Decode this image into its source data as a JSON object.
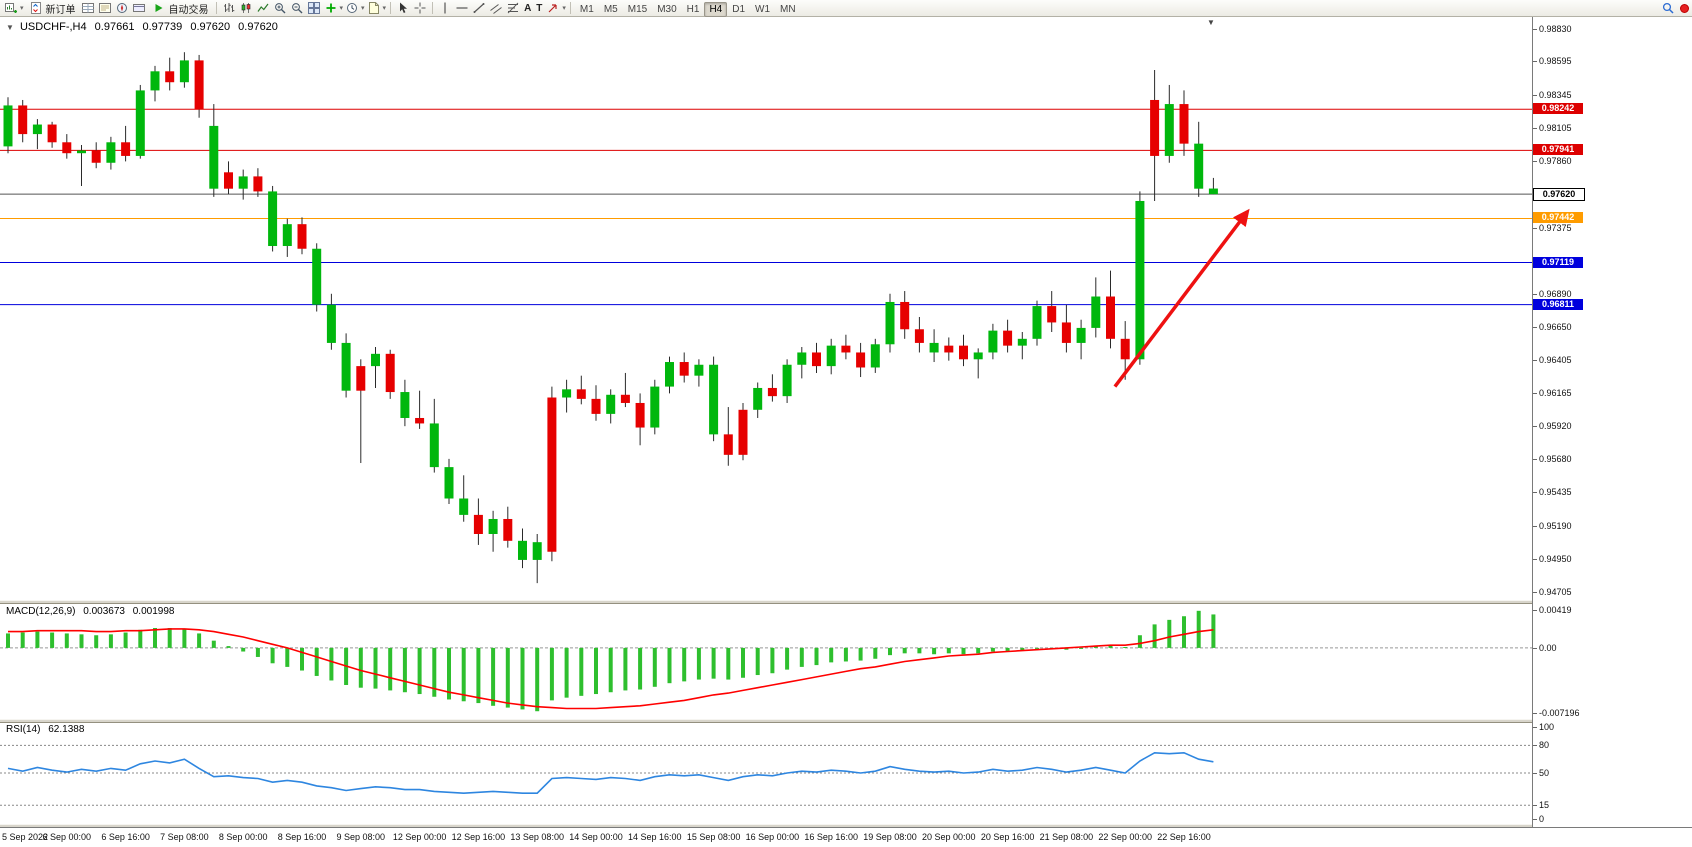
{
  "toolbar": {
    "new_order_label": "新订单",
    "autotrading_label": "自动交易",
    "text_tool_label": "A",
    "label_tool_label": "T",
    "timeframes": [
      "M1",
      "M5",
      "M15",
      "M30",
      "H1",
      "H4",
      "D1",
      "W1",
      "MN"
    ],
    "active_timeframe": "H4"
  },
  "colors": {
    "up": "#00b70d",
    "down": "#e60000",
    "wick": "#2a2a2a",
    "macd_hist": "#2ebf2e",
    "macd_signal": "#ff0000",
    "rsi_line": "#2e86e0",
    "arrow": "#ee1111"
  },
  "chart": {
    "title": "USDCHF-,H4",
    "ohlc": {
      "open": "0.97661",
      "high": "0.97739",
      "low": "0.97620",
      "close": "0.97620"
    },
    "price_axis": {
      "max": 0.9883,
      "min": 0.94705,
      "scale_labels": [
        "0.98830",
        "0.98595",
        "0.98345",
        "0.98105",
        "0.97860",
        "0.97375",
        "0.96890",
        "0.96650",
        "0.96405",
        "0.96165",
        "0.95920",
        "0.95680",
        "0.95435",
        "0.95190",
        "0.94950",
        "0.94705"
      ]
    },
    "levels": [
      {
        "price": 0.98242,
        "label": "0.98242",
        "line_color": "#dd0000",
        "badge_bg": "#dd0000",
        "badge_fg": "#ffffff"
      },
      {
        "price": 0.97941,
        "label": "0.97941",
        "line_color": "#dd0000",
        "badge_bg": "#dd0000",
        "badge_fg": "#ffffff"
      },
      {
        "price": 0.9762,
        "label": "0.97620",
        "line_color": "#555555",
        "badge_bg": "#ffffff",
        "badge_fg": "#000000",
        "badge_border": "#000000"
      },
      {
        "price": 0.97442,
        "label": "0.97442",
        "line_color": "#ff9c00",
        "badge_bg": "#ff9c00",
        "badge_fg": "#ffffff"
      },
      {
        "price": 0.97119,
        "label": "0.97119",
        "line_color": "#0000dd",
        "badge_bg": "#0000dd",
        "badge_fg": "#ffffff"
      },
      {
        "price": 0.96811,
        "label": "0.96811",
        "line_color": "#0000dd",
        "badge_bg": "#0000dd",
        "badge_fg": "#ffffff"
      }
    ],
    "time_labels": [
      "5 Sep 2022",
      "6 Sep 00:00",
      "6 Sep 16:00",
      "7 Sep 08:00",
      "8 Sep 00:00",
      "8 Sep 16:00",
      "9 Sep 08:00",
      "12 Sep 00:00",
      "12 Sep 16:00",
      "13 Sep 08:00",
      "14 Sep 00:00",
      "14 Sep 16:00",
      "15 Sep 08:00",
      "16 Sep 00:00",
      "16 Sep 16:00",
      "19 Sep 08:00",
      "20 Sep 00:00",
      "20 Sep 16:00",
      "21 Sep 08:00",
      "22 Sep 00:00",
      "22 Sep 16:00"
    ],
    "label_every_n_candles": 4,
    "candles": [
      [
        0.9797,
        0.9833,
        0.9792,
        0.9827,
        "g"
      ],
      [
        0.9827,
        0.9831,
        0.98,
        0.9806,
        "r"
      ],
      [
        0.9806,
        0.9817,
        0.9795,
        0.9813,
        "g"
      ],
      [
        0.9813,
        0.9815,
        0.9796,
        0.98,
        "r"
      ],
      [
        0.98,
        0.9806,
        0.9788,
        0.9792,
        "r"
      ],
      [
        0.9792,
        0.9798,
        0.9768,
        0.9794,
        "g"
      ],
      [
        0.9794,
        0.98,
        0.9781,
        0.9785,
        "r"
      ],
      [
        0.9785,
        0.9804,
        0.978,
        0.98,
        "g"
      ],
      [
        0.98,
        0.9812,
        0.9786,
        0.979,
        "r"
      ],
      [
        0.979,
        0.9842,
        0.9788,
        0.9838,
        "g"
      ],
      [
        0.9838,
        0.9856,
        0.983,
        0.9852,
        "g"
      ],
      [
        0.9852,
        0.9862,
        0.9838,
        0.9844,
        "r"
      ],
      [
        0.9844,
        0.9866,
        0.984,
        0.986,
        "g"
      ],
      [
        0.986,
        0.9864,
        0.9818,
        0.9824,
        "r"
      ],
      [
        0.9766,
        0.9828,
        0.976,
        0.9812,
        "g"
      ],
      [
        0.9778,
        0.9786,
        0.9762,
        0.9766,
        "r"
      ],
      [
        0.9766,
        0.978,
        0.9758,
        0.9775,
        "g"
      ],
      [
        0.9775,
        0.9781,
        0.976,
        0.9764,
        "r"
      ],
      [
        0.9764,
        0.9768,
        0.972,
        0.9724,
        "g"
      ],
      [
        0.9724,
        0.9744,
        0.9716,
        0.974,
        "g"
      ],
      [
        0.974,
        0.9745,
        0.9718,
        0.9722,
        "r"
      ],
      [
        0.9722,
        0.9726,
        0.9676,
        0.9681,
        "g"
      ],
      [
        0.9681,
        0.9689,
        0.9648,
        0.9653,
        "g"
      ],
      [
        0.9653,
        0.966,
        0.9613,
        0.9618,
        "g"
      ],
      [
        0.9618,
        0.9641,
        0.9565,
        0.9636,
        "r"
      ],
      [
        0.9636,
        0.965,
        0.962,
        0.9645,
        "g"
      ],
      [
        0.9645,
        0.9648,
        0.9612,
        0.9617,
        "r"
      ],
      [
        0.9617,
        0.9626,
        0.9592,
        0.9598,
        "g"
      ],
      [
        0.9598,
        0.9618,
        0.959,
        0.9594,
        "r"
      ],
      [
        0.9594,
        0.9612,
        0.9558,
        0.9562,
        "g"
      ],
      [
        0.9562,
        0.9568,
        0.9535,
        0.9539,
        "g"
      ],
      [
        0.9539,
        0.9556,
        0.9522,
        0.9527,
        "g"
      ],
      [
        0.9527,
        0.9539,
        0.9505,
        0.9513,
        "r"
      ],
      [
        0.9513,
        0.953,
        0.95,
        0.9524,
        "g"
      ],
      [
        0.9524,
        0.9533,
        0.9503,
        0.9508,
        "r"
      ],
      [
        0.9508,
        0.9517,
        0.9488,
        0.9494,
        "g"
      ],
      [
        0.9494,
        0.9513,
        0.9477,
        0.9507,
        "g"
      ],
      [
        0.95,
        0.9621,
        0.9493,
        0.9613,
        "r"
      ],
      [
        0.9613,
        0.9626,
        0.9602,
        0.9619,
        "g"
      ],
      [
        0.9619,
        0.9629,
        0.9608,
        0.9612,
        "r"
      ],
      [
        0.9612,
        0.9622,
        0.9596,
        0.9601,
        "r"
      ],
      [
        0.9601,
        0.9619,
        0.9594,
        0.9615,
        "g"
      ],
      [
        0.9615,
        0.9631,
        0.9606,
        0.9609,
        "r"
      ],
      [
        0.9609,
        0.9616,
        0.9578,
        0.9591,
        "r"
      ],
      [
        0.9591,
        0.9626,
        0.9586,
        0.9621,
        "g"
      ],
      [
        0.9621,
        0.9643,
        0.9616,
        0.9639,
        "g"
      ],
      [
        0.9639,
        0.9646,
        0.9624,
        0.9629,
        "r"
      ],
      [
        0.9629,
        0.9641,
        0.9621,
        0.9637,
        "g"
      ],
      [
        0.9637,
        0.9643,
        0.9581,
        0.9586,
        "g"
      ],
      [
        0.9586,
        0.9606,
        0.9563,
        0.9571,
        "r"
      ],
      [
        0.9571,
        0.9609,
        0.9567,
        0.9604,
        "r"
      ],
      [
        0.9604,
        0.9624,
        0.9598,
        0.962,
        "g"
      ],
      [
        0.962,
        0.963,
        0.961,
        0.9614,
        "r"
      ],
      [
        0.9614,
        0.9641,
        0.9609,
        0.9637,
        "g"
      ],
      [
        0.9637,
        0.965,
        0.9627,
        0.9646,
        "g"
      ],
      [
        0.9646,
        0.9653,
        0.9631,
        0.9636,
        "r"
      ],
      [
        0.9636,
        0.9656,
        0.963,
        0.9651,
        "g"
      ],
      [
        0.9651,
        0.9659,
        0.9641,
        0.9646,
        "r"
      ],
      [
        0.9646,
        0.9653,
        0.9628,
        0.9635,
        "r"
      ],
      [
        0.9635,
        0.9656,
        0.9631,
        0.9652,
        "g"
      ],
      [
        0.9652,
        0.9689,
        0.9646,
        0.9683,
        "g"
      ],
      [
        0.9683,
        0.9691,
        0.9656,
        0.9663,
        "r"
      ],
      [
        0.9663,
        0.9672,
        0.9646,
        0.9653,
        "r"
      ],
      [
        0.9653,
        0.9663,
        0.9639,
        0.9646,
        "g"
      ],
      [
        0.9646,
        0.9657,
        0.964,
        0.9651,
        "r"
      ],
      [
        0.9651,
        0.9659,
        0.9636,
        0.9641,
        "r"
      ],
      [
        0.9641,
        0.9649,
        0.9627,
        0.9646,
        "g"
      ],
      [
        0.9646,
        0.9667,
        0.9641,
        0.9662,
        "g"
      ],
      [
        0.9662,
        0.967,
        0.9646,
        0.9651,
        "r"
      ],
      [
        0.9651,
        0.9661,
        0.9641,
        0.9656,
        "g"
      ],
      [
        0.9656,
        0.9684,
        0.9651,
        0.968,
        "g"
      ],
      [
        0.968,
        0.9691,
        0.9661,
        0.9668,
        "r"
      ],
      [
        0.9668,
        0.9681,
        0.9646,
        0.9653,
        "r"
      ],
      [
        0.9653,
        0.967,
        0.9641,
        0.9664,
        "g"
      ],
      [
        0.9664,
        0.9701,
        0.9657,
        0.9687,
        "g"
      ],
      [
        0.9687,
        0.9706,
        0.9649,
        0.9656,
        "r"
      ],
      [
        0.9656,
        0.9669,
        0.9626,
        0.9641,
        "r"
      ],
      [
        0.9641,
        0.9764,
        0.9637,
        0.9757,
        "g"
      ],
      [
        0.9831,
        0.9853,
        0.9757,
        0.979,
        "r"
      ],
      [
        0.979,
        0.9842,
        0.9785,
        0.9828,
        "g"
      ],
      [
        0.9828,
        0.9838,
        0.979,
        0.9799,
        "r"
      ],
      [
        0.9799,
        0.9815,
        0.976,
        0.9766,
        "g"
      ],
      [
        0.97661,
        0.97739,
        0.9762,
        0.9762,
        "g"
      ]
    ],
    "arrow": {
      "x1_index": 75.3,
      "p1": 0.9621,
      "x2_index": 84.3,
      "p2": 0.9749
    }
  },
  "macd": {
    "label": "MACD(12,26,9)",
    "value_main": "0.003673",
    "value_signal": "0.001998",
    "max": 0.00419,
    "min": -0.007196,
    "axis": [
      "0.00419",
      "0.00",
      "-0.007196"
    ],
    "histogram": [
      0.0016,
      0.0017,
      0.0018,
      0.0017,
      0.0016,
      0.0015,
      0.0014,
      0.0015,
      0.0017,
      0.002,
      0.0022,
      0.0022,
      0.0021,
      0.0016,
      0.0008,
      0.0002,
      -0.0004,
      -0.001,
      -0.0017,
      -0.0021,
      -0.0025,
      -0.0031,
      -0.0036,
      -0.0041,
      -0.0044,
      -0.0045,
      -0.0047,
      -0.0049,
      -0.0051,
      -0.0054,
      -0.0057,
      -0.0059,
      -0.0061,
      -0.0064,
      -0.0066,
      -0.0068,
      -0.007,
      -0.0058,
      -0.0055,
      -0.0053,
      -0.0051,
      -0.0049,
      -0.0047,
      -0.0046,
      -0.0043,
      -0.0039,
      -0.0037,
      -0.0035,
      -0.0034,
      -0.0035,
      -0.0033,
      -0.003,
      -0.0028,
      -0.0024,
      -0.0021,
      -0.0019,
      -0.0016,
      -0.0015,
      -0.0014,
      -0.0012,
      -0.0008,
      -0.0006,
      -0.0006,
      -0.0007,
      -0.0006,
      -0.0007,
      -0.0006,
      -0.0004,
      -0.0004,
      -0.0003,
      -0.0001,
      0.0,
      -0.0002,
      -0.0001,
      0.0002,
      0.0003,
      0.0001,
      0.0014,
      0.0026,
      0.0031,
      0.0035,
      0.0041,
      0.0037
    ],
    "signal": [
      0.0018,
      0.0018,
      0.0019,
      0.0019,
      0.0019,
      0.0019,
      0.0018,
      0.0018,
      0.0019,
      0.0019,
      0.002,
      0.0021,
      0.0021,
      0.002,
      0.0018,
      0.0015,
      0.0012,
      0.0008,
      0.0004,
      0.0,
      -0.0005,
      -0.001,
      -0.0015,
      -0.002,
      -0.0025,
      -0.0029,
      -0.0033,
      -0.0037,
      -0.0041,
      -0.0045,
      -0.0049,
      -0.0052,
      -0.0055,
      -0.0058,
      -0.0061,
      -0.0063,
      -0.0065,
      -0.0066,
      -0.0067,
      -0.0067,
      -0.0067,
      -0.0066,
      -0.0065,
      -0.0064,
      -0.0062,
      -0.006,
      -0.0058,
      -0.0055,
      -0.0052,
      -0.005,
      -0.0047,
      -0.0044,
      -0.0041,
      -0.0038,
      -0.0035,
      -0.0032,
      -0.0029,
      -0.0026,
      -0.0023,
      -0.0021,
      -0.0018,
      -0.0015,
      -0.0013,
      -0.0011,
      -0.0009,
      -0.0008,
      -0.0007,
      -0.0005,
      -0.0004,
      -0.0003,
      -0.0002,
      -0.0001,
      0.0,
      0.0001,
      0.0002,
      0.0003,
      0.0003,
      0.0005,
      0.0008,
      0.0012,
      0.0015,
      0.0018,
      0.002
    ]
  },
  "rsi": {
    "label": "RSI(14)",
    "value": "62.1388",
    "axis": [
      "100",
      "80",
      "50",
      "15",
      "0"
    ],
    "levels": [
      80,
      50,
      15
    ],
    "series": [
      55,
      52,
      56,
      53,
      51,
      54,
      52,
      55,
      53,
      60,
      63,
      61,
      65,
      55,
      46,
      47,
      45,
      44,
      40,
      42,
      40,
      36,
      34,
      31,
      33,
      35,
      34,
      32,
      32,
      30,
      29,
      28,
      29,
      30,
      29,
      28,
      28,
      44,
      45,
      44,
      43,
      45,
      44,
      42,
      46,
      48,
      47,
      48,
      45,
      42,
      46,
      48,
      47,
      50,
      52,
      51,
      53,
      52,
      50,
      52,
      57,
      54,
      52,
      51,
      52,
      50,
      51,
      54,
      52,
      53,
      56,
      54,
      51,
      53,
      56,
      53,
      50,
      63,
      72,
      71,
      72,
      65,
      62.14
    ]
  }
}
